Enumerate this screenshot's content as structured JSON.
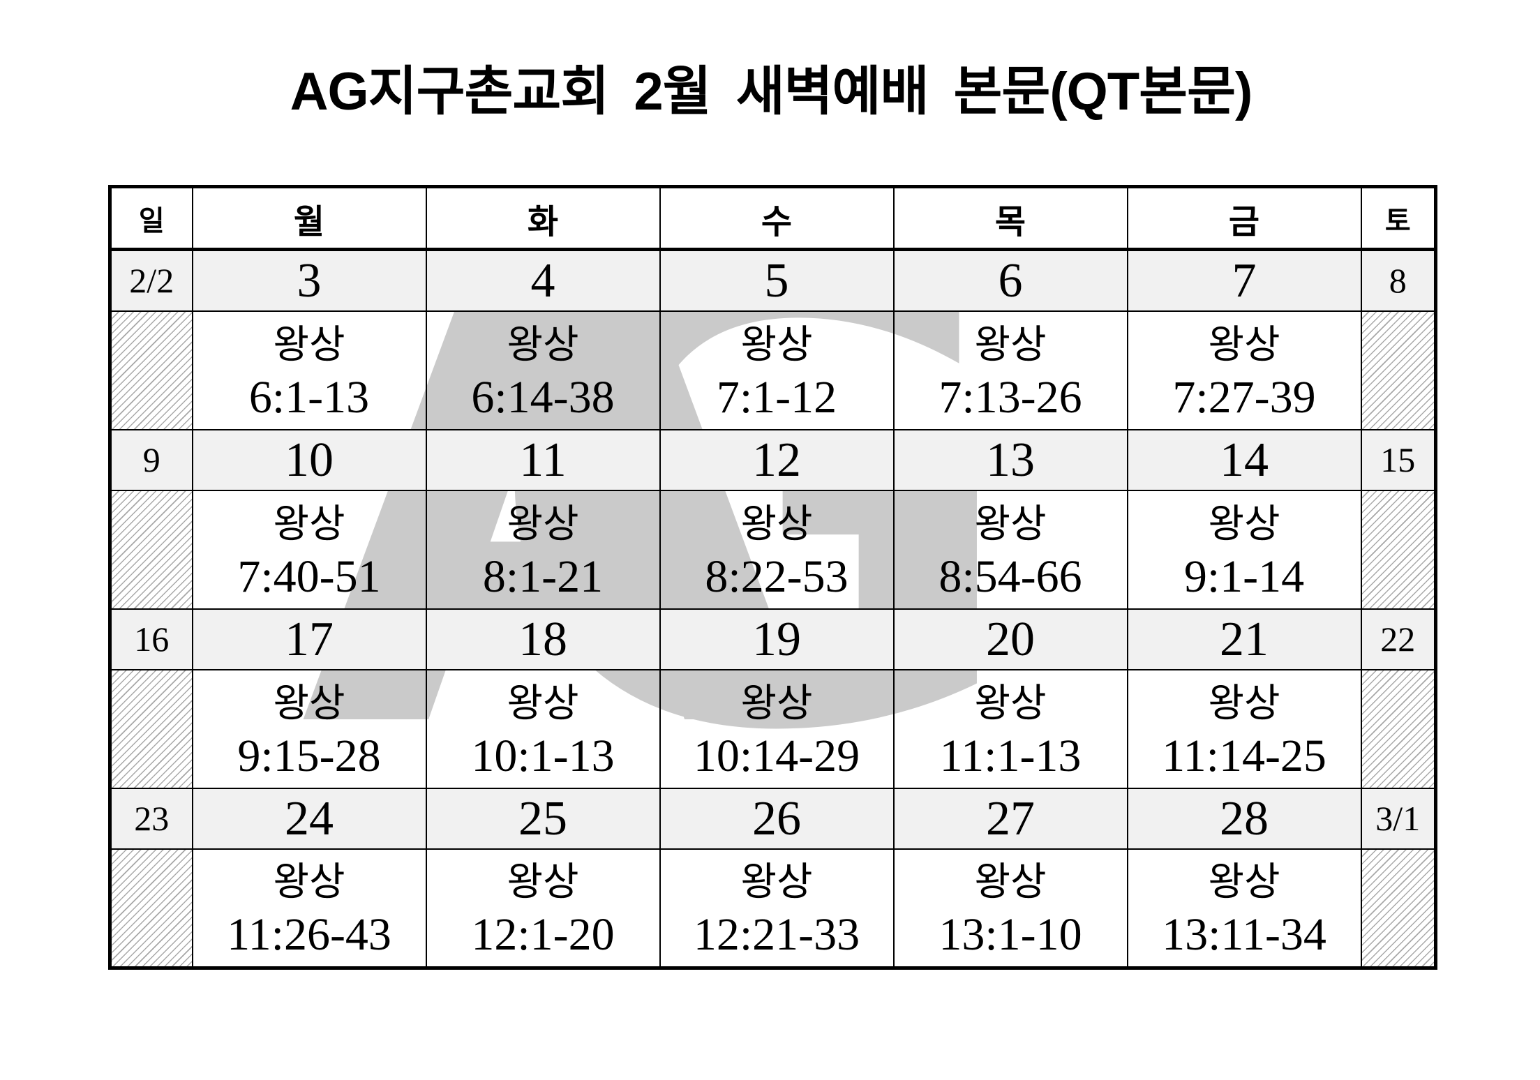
{
  "page": {
    "title": "AG지구촌교회 2월 새벽예배 본문(QT본문)",
    "watermark_text": "AG"
  },
  "colors": {
    "date_row_bg": "#f1f1f1",
    "border": "#000000",
    "watermark": "#cacaca",
    "hatch_line": "#a8a8a8"
  },
  "calendar": {
    "day_headers": [
      "일",
      "월",
      "화",
      "수",
      "목",
      "금",
      "토"
    ],
    "weeks": [
      {
        "dates": [
          "2/2",
          "3",
          "4",
          "5",
          "6",
          "7",
          "8"
        ],
        "readings": [
          null,
          {
            "book": "왕상",
            "verses": "6:1-13"
          },
          {
            "book": "왕상",
            "verses": "6:14-38"
          },
          {
            "book": "왕상",
            "verses": "7:1-12"
          },
          {
            "book": "왕상",
            "verses": "7:13-26"
          },
          {
            "book": "왕상",
            "verses": "7:27-39"
          },
          null
        ]
      },
      {
        "dates": [
          "9",
          "10",
          "11",
          "12",
          "13",
          "14",
          "15"
        ],
        "readings": [
          null,
          {
            "book": "왕상",
            "verses": "7:40-51"
          },
          {
            "book": "왕상",
            "verses": "8:1-21"
          },
          {
            "book": "왕상",
            "verses": "8:22-53"
          },
          {
            "book": "왕상",
            "verses": "8:54-66"
          },
          {
            "book": "왕상",
            "verses": "9:1-14"
          },
          null
        ]
      },
      {
        "dates": [
          "16",
          "17",
          "18",
          "19",
          "20",
          "21",
          "22"
        ],
        "readings": [
          null,
          {
            "book": "왕상",
            "verses": "9:15-28"
          },
          {
            "book": "왕상",
            "verses": "10:1-13"
          },
          {
            "book": "왕상",
            "verses": "10:14-29"
          },
          {
            "book": "왕상",
            "verses": "11:1-13"
          },
          {
            "book": "왕상",
            "verses": "11:14-25"
          },
          null
        ]
      },
      {
        "dates": [
          "23",
          "24",
          "25",
          "26",
          "27",
          "28",
          "3/1"
        ],
        "readings": [
          null,
          {
            "book": "왕상",
            "verses": "11:26-43"
          },
          {
            "book": "왕상",
            "verses": "12:1-20"
          },
          {
            "book": "왕상",
            "verses": "12:21-33"
          },
          {
            "book": "왕상",
            "verses": "13:1-10"
          },
          {
            "book": "왕상",
            "verses": "13:11-34"
          },
          null
        ]
      }
    ]
  }
}
